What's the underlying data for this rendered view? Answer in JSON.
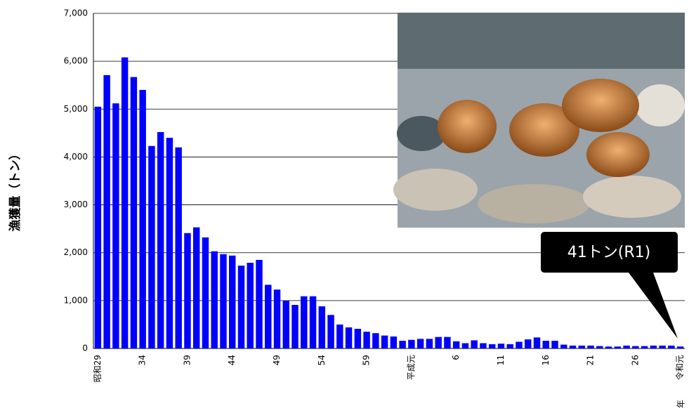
{
  "chart_data": {
    "type": "bar",
    "y_label": "漁獲量（トン）",
    "x_unit": "年",
    "annotation": "41トン(R1)",
    "color": "#0000ff",
    "grid": true,
    "ylim": [
      0,
      7000
    ],
    "yticks": [
      0,
      {
        "value": 1000,
        "label": "1,000"
      },
      {
        "value": 2000,
        "label": "2,000"
      },
      {
        "value": 3000,
        "label": "3,000"
      },
      {
        "value": 4000,
        "label": "4,000"
      },
      {
        "value": 5000,
        "label": "5,000"
      },
      {
        "value": 6000,
        "label": "6,000"
      },
      {
        "value": 7000,
        "label": "7,000"
      }
    ],
    "categories": [
      "昭和29",
      null,
      null,
      null,
      null,
      "34",
      null,
      null,
      null,
      null,
      "39",
      null,
      null,
      null,
      null,
      "44",
      null,
      null,
      null,
      null,
      "49",
      null,
      null,
      null,
      null,
      "54",
      null,
      null,
      null,
      null,
      "59",
      null,
      null,
      null,
      null,
      "平成元",
      null,
      null,
      null,
      null,
      "6",
      null,
      null,
      null,
      null,
      "11",
      null,
      null,
      null,
      null,
      "16",
      null,
      null,
      null,
      null,
      "21",
      null,
      null,
      null,
      null,
      "26",
      null,
      null,
      null,
      null,
      "令和元"
    ],
    "values": [
      5050,
      5710,
      5120,
      6080,
      5670,
      5400,
      4230,
      4520,
      4400,
      4200,
      2410,
      2530,
      2320,
      2030,
      1970,
      1940,
      1730,
      1790,
      1850,
      1330,
      1230,
      1000,
      910,
      1090,
      1090,
      880,
      700,
      500,
      440,
      410,
      350,
      320,
      270,
      250,
      160,
      180,
      200,
      200,
      240,
      240,
      150,
      110,
      170,
      110,
      90,
      100,
      90,
      140,
      190,
      230,
      160,
      160,
      80,
      60,
      60,
      60,
      50,
      40,
      40,
      60,
      50,
      50,
      60,
      60,
      60,
      41
    ]
  }
}
